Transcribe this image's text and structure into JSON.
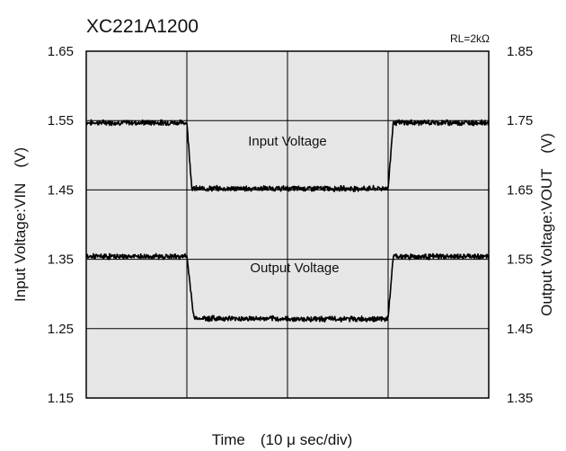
{
  "chart_data": {
    "type": "line",
    "title": "XC221A1200",
    "load_note": "RL=2kΩ",
    "xlabel": "Time　(10 μ sec/div)",
    "ylabel_left": "Input Voltage:VIN　(V)",
    "ylabel_right": "Output Voltage:VOUT　(V)",
    "x_divisions": 4,
    "ylim_left": [
      1.15,
      1.65
    ],
    "ylim_right": [
      1.35,
      1.85
    ],
    "yticks_left": [
      "1.15",
      "1.25",
      "1.35",
      "1.45",
      "1.55",
      "1.65"
    ],
    "yticks_right": [
      "1.35",
      "1.45",
      "1.55",
      "1.65",
      "1.75",
      "1.85"
    ],
    "grid": true,
    "background": "#e6e6e6",
    "series": [
      {
        "name": "Input Voltage",
        "axis": "left",
        "color": "#000000",
        "x": [
          0,
          1.0,
          1.05,
          3.0,
          3.05,
          4.0
        ],
        "y": [
          1.547,
          1.547,
          1.452,
          1.452,
          1.547,
          1.547
        ]
      },
      {
        "name": "Output Voltage",
        "axis": "right",
        "color": "#000000",
        "x": [
          0,
          1.0,
          1.07,
          2.0,
          3.0,
          3.05,
          4.0
        ],
        "y": [
          1.554,
          1.554,
          1.465,
          1.464,
          1.464,
          1.554,
          1.554
        ]
      }
    ]
  }
}
